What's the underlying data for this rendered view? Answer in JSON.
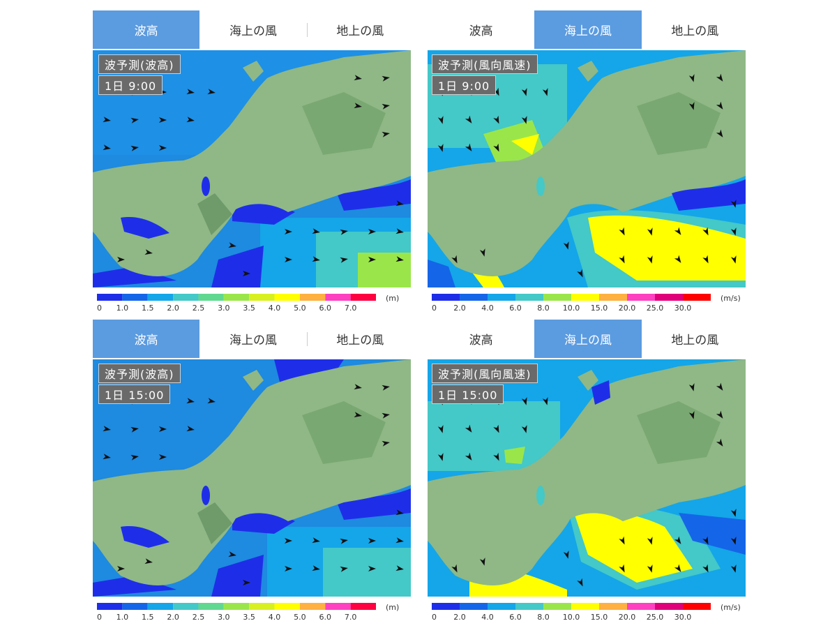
{
  "tabs": [
    "波高",
    "海上の風",
    "地上の風"
  ],
  "panels": [
    {
      "title": "波予測(波高)",
      "time": "1日  9:00",
      "active_tab": 0,
      "legend": "wave"
    },
    {
      "title": "波予測(風向風速)",
      "time": "1日  9:00",
      "active_tab": 1,
      "legend": "wind"
    },
    {
      "title": "波予測(波高)",
      "time": "1日 15:00",
      "active_tab": 0,
      "legend": "wave"
    },
    {
      "title": "波予測(風向風速)",
      "time": "1日 15:00",
      "active_tab": 1,
      "legend": "wind"
    }
  ],
  "legends": {
    "wave": {
      "labels": [
        "0",
        "1.0",
        "1.5",
        "2.0",
        "2.5",
        "3.0",
        "3.5",
        "4.0",
        "5.0",
        "6.0",
        "7.0"
      ],
      "unit": "(m)",
      "colors": [
        "#1e2ee8",
        "#1565e8",
        "#14a6e8",
        "#44c8c8",
        "#60d890",
        "#9ae64a",
        "#d8f020",
        "#ffff00",
        "#ffb040",
        "#ff40c0",
        "#ff0040"
      ]
    },
    "wind": {
      "labels": [
        "0",
        "2.0",
        "4.0",
        "6.0",
        "8.0",
        "10.0",
        "15.0",
        "20.0",
        "25.0",
        "30.0"
      ],
      "unit": "(m/s)",
      "colors": [
        "#1e2ee8",
        "#1565e8",
        "#14a6e8",
        "#44c8c8",
        "#9ae64a",
        "#ffff00",
        "#ffb040",
        "#ff40c0",
        "#e0007a",
        "#ff0000"
      ]
    }
  },
  "colors": {
    "land": "#8fb886",
    "land_dark": "#6f9a6a",
    "tab_active": "#5b9be0",
    "arrow": "#111111"
  }
}
